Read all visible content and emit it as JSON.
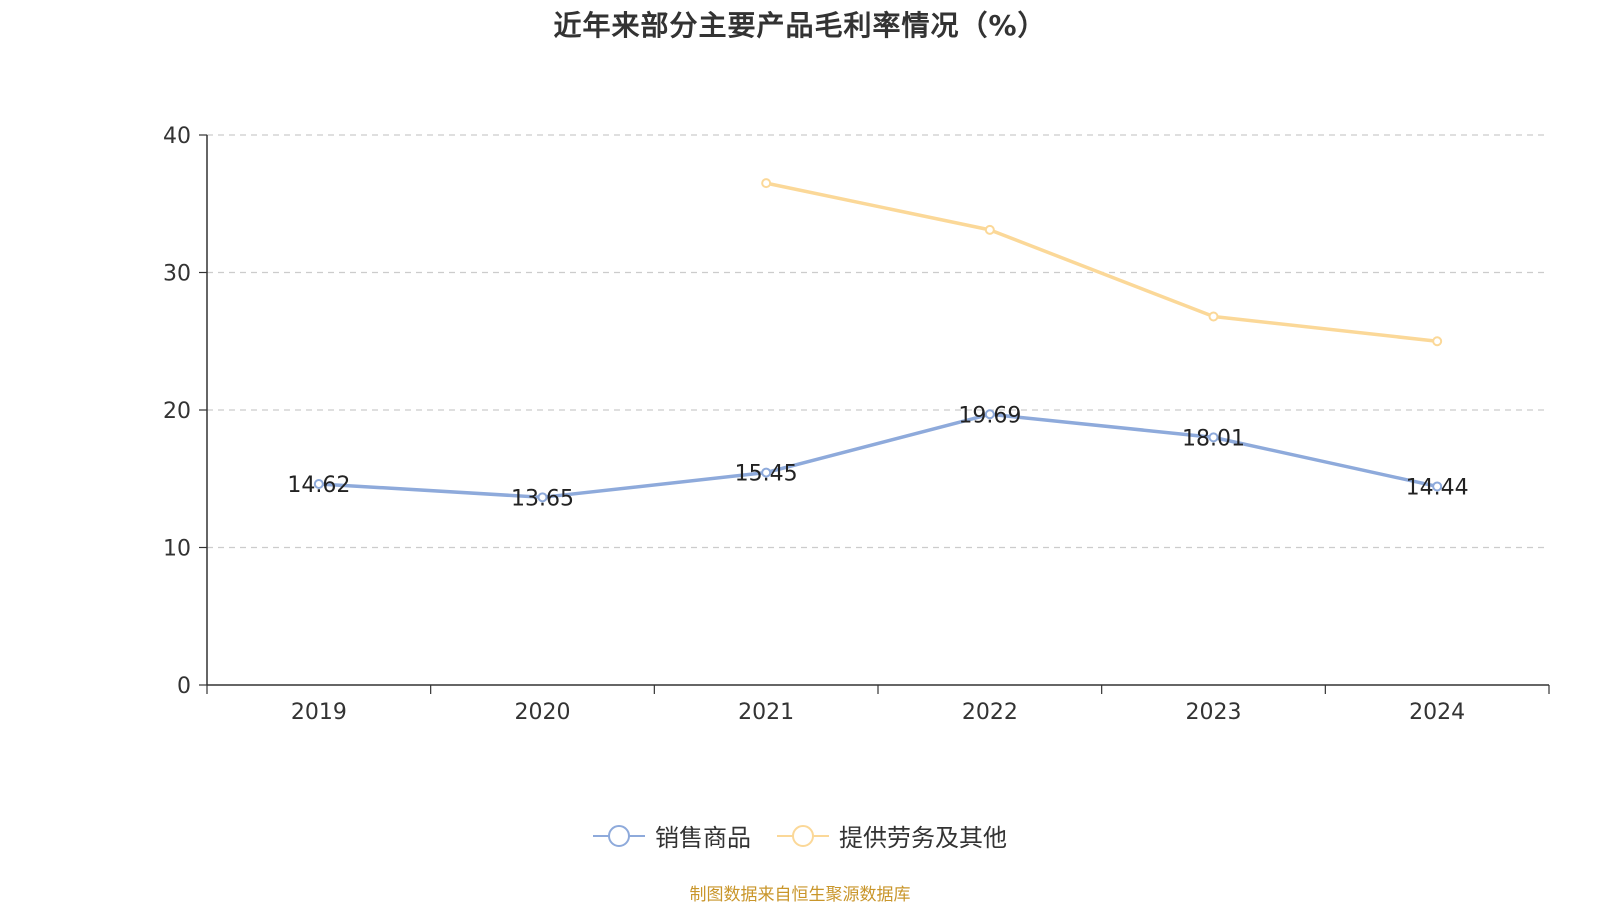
{
  "chart_data": {
    "type": "line",
    "title": "近年来部分主要产品毛利率情况（%）",
    "categories": [
      "2019",
      "2020",
      "2021",
      "2022",
      "2023",
      "2024"
    ],
    "ylim": [
      0,
      40
    ],
    "yticks": [
      0,
      10,
      20,
      30,
      40
    ],
    "grid": true,
    "legend_position": "bottom",
    "series": [
      {
        "name": "销售商品",
        "color": "#8eaadb",
        "values": [
          14.62,
          13.65,
          15.45,
          19.69,
          18.01,
          14.44
        ],
        "labels_shown": true
      },
      {
        "name": "提供劳务及其他",
        "color": "#fbd898",
        "values": [
          null,
          null,
          36.5,
          33.1,
          26.8,
          25.0
        ],
        "labels_shown": false
      }
    ]
  },
  "source_text": "制图数据来自恒生聚源数据库"
}
